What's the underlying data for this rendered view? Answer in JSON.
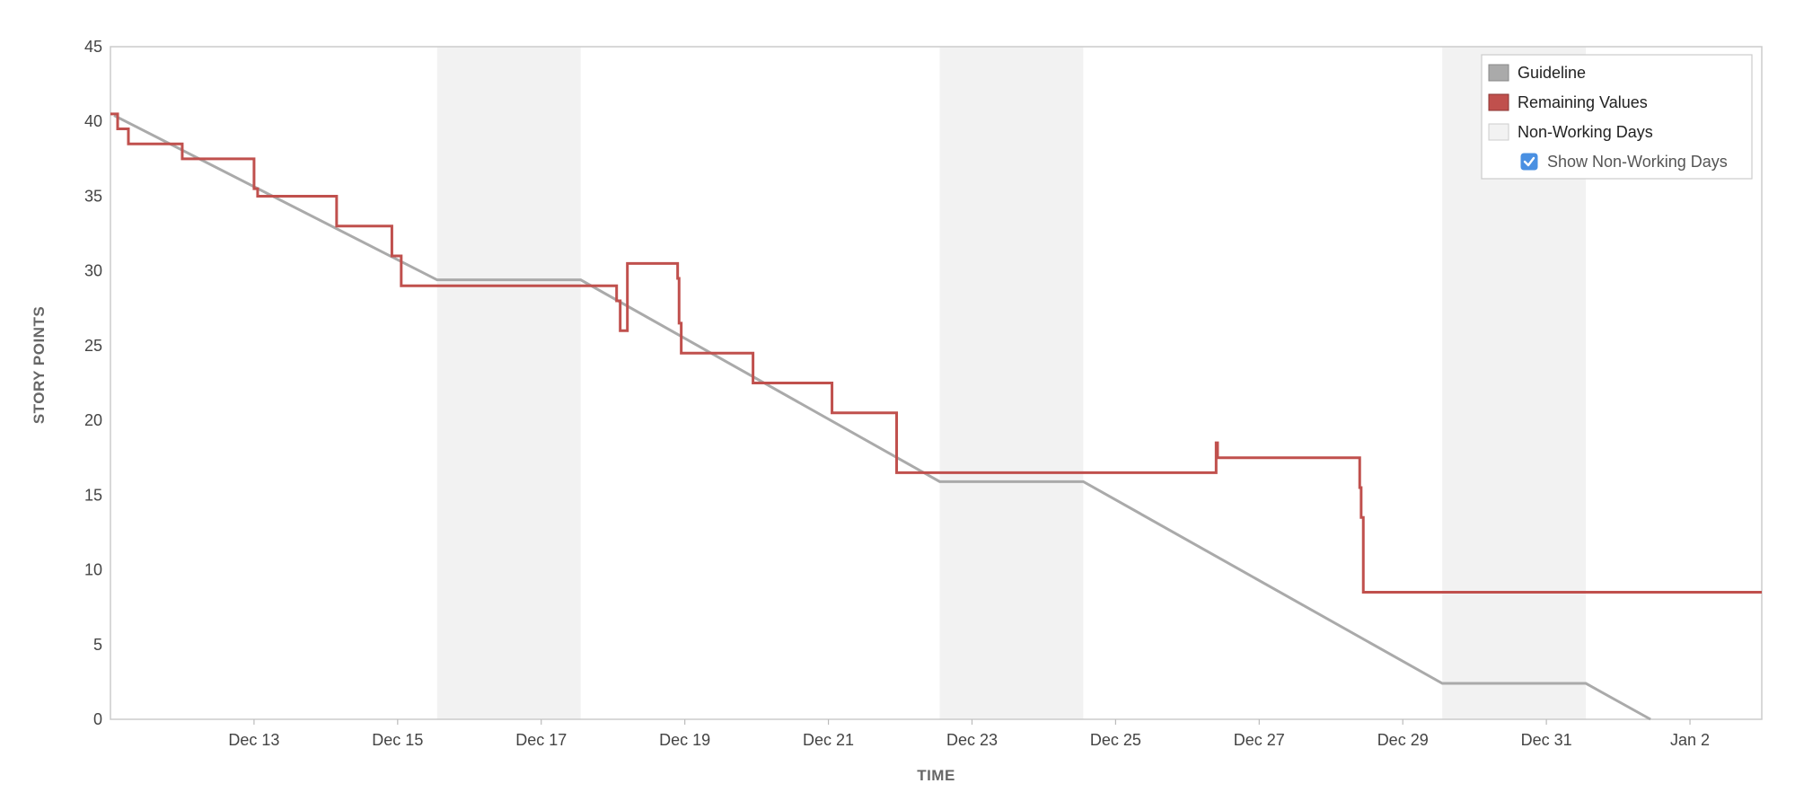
{
  "chart_data": {
    "type": "line",
    "title": "",
    "xlabel": "TIME",
    "ylabel": "STORY POINTS",
    "x_axis": {
      "min_day": 11.0,
      "max_day": 34.0,
      "ticks": [
        {
          "day": 13,
          "label": "Dec 13"
        },
        {
          "day": 15,
          "label": "Dec 15"
        },
        {
          "day": 17,
          "label": "Dec 17"
        },
        {
          "day": 19,
          "label": "Dec 19"
        },
        {
          "day": 21,
          "label": "Dec 21"
        },
        {
          "day": 23,
          "label": "Dec 23"
        },
        {
          "day": 25,
          "label": "Dec 25"
        },
        {
          "day": 27,
          "label": "Dec 27"
        },
        {
          "day": 29,
          "label": "Dec 29"
        },
        {
          "day": 31,
          "label": "Dec 31"
        },
        {
          "day": 33,
          "label": "Jan 2"
        }
      ]
    },
    "ylim": [
      0,
      45
    ],
    "y_ticks": [
      0,
      5,
      10,
      15,
      20,
      25,
      30,
      35,
      40,
      45
    ],
    "non_working_days": [
      [
        15.55,
        17.55
      ],
      [
        22.55,
        24.55
      ],
      [
        29.55,
        31.55
      ]
    ],
    "series": [
      {
        "name": "Guideline",
        "color": "#aaaaaa",
        "points": [
          [
            11.05,
            40.4
          ],
          [
            15.55,
            29.4
          ],
          [
            17.55,
            29.4
          ],
          [
            22.55,
            15.9
          ],
          [
            24.55,
            15.9
          ],
          [
            29.55,
            2.4
          ],
          [
            31.55,
            2.4
          ],
          [
            32.45,
            0
          ]
        ]
      },
      {
        "name": "Remaining Values",
        "color": "#c0504d",
        "step": true,
        "points": [
          [
            11.0,
            40.5
          ],
          [
            11.1,
            39.5
          ],
          [
            11.25,
            38.5
          ],
          [
            12.0,
            37.5
          ],
          [
            13.0,
            35.5
          ],
          [
            13.05,
            35.0
          ],
          [
            14.15,
            33.0
          ],
          [
            14.92,
            31.0
          ],
          [
            15.05,
            29.0
          ],
          [
            18.05,
            28.0
          ],
          [
            18.1,
            26.0
          ],
          [
            18.2,
            30.5
          ],
          [
            18.9,
            29.5
          ],
          [
            18.92,
            26.5
          ],
          [
            18.95,
            24.5
          ],
          [
            19.95,
            22.5
          ],
          [
            21.05,
            20.5
          ],
          [
            21.95,
            16.5
          ],
          [
            26.4,
            18.5
          ],
          [
            26.42,
            17.5
          ],
          [
            28.4,
            15.5
          ],
          [
            28.42,
            13.5
          ],
          [
            28.45,
            8.5
          ],
          [
            34.0,
            8.5
          ]
        ]
      }
    ],
    "legend": {
      "position": "top-right",
      "entries": [
        {
          "name": "Guideline",
          "color": "#aaaaaa"
        },
        {
          "name": "Remaining Values",
          "color": "#c0504d"
        },
        {
          "name": "Non-Working Days",
          "color": "#f2f2f2"
        }
      ],
      "checkbox": {
        "label": "Show Non-Working Days",
        "checked": true,
        "color": "#4a90e2"
      }
    },
    "grid": false
  }
}
